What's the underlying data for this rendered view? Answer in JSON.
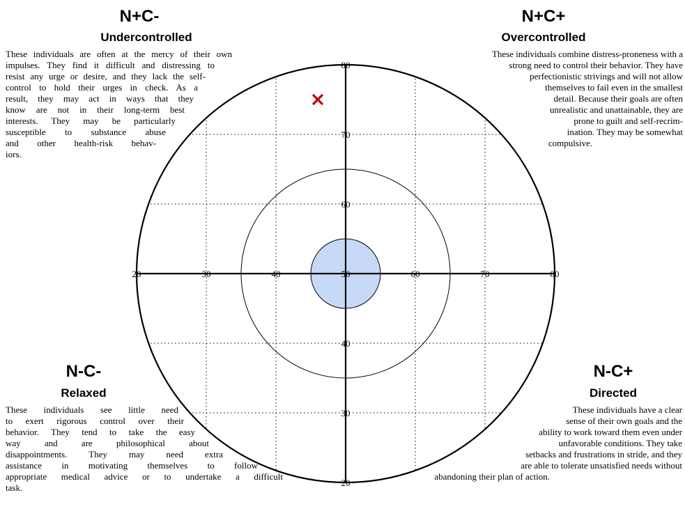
{
  "chart_data": {
    "type": "scatter",
    "x_axis": {
      "range": [
        20,
        80
      ],
      "ticks": [
        "20",
        "30",
        "40",
        "60",
        "70",
        "80"
      ]
    },
    "y_axis": {
      "range": [
        20,
        80
      ],
      "ticks": [
        "80",
        "70",
        "60",
        "40",
        "30",
        "20"
      ]
    },
    "center_label": "50",
    "reference_circles": [
      {
        "radius": 15,
        "style": "outline"
      },
      {
        "radius": 30,
        "style": "outline-bold"
      }
    ],
    "center_disc": {
      "radius": 5,
      "fill": "#c6d9f7"
    },
    "grid_lines": [
      30,
      40,
      60,
      70
    ],
    "grid": "dotted",
    "marker": {
      "x": 46,
      "y": 75,
      "symbol": "x",
      "color": "#c00000"
    }
  },
  "quadrants": {
    "top_left": {
      "code": "N+C-",
      "type": "Undercontrolled",
      "lines": [
        "These individuals are often at the mercy of their own",
        "impulses. They find it difficult and distressing to",
        "resist any urge or desire, and they lack the self-",
        "control to hold their urges in check. As a",
        "result, they may act in ways that they",
        "know are not in their long-term best",
        "interests. They may be particularly",
        "susceptible to substance abuse",
        "and other health-risk behav-",
        "iors."
      ]
    },
    "top_right": {
      "code": "N+C+",
      "type": "Overcontrolled",
      "lines": [
        "These individuals combine distress-proneness with a",
        "strong need to control their behavior. They have",
        "perfectionistic strivings and will not allow",
        "themselves to fail even in the smallest",
        "detail. Because their goals are often",
        "unrealistic and unattainable, they are",
        "prone to guilt and self-recrim-",
        "ination. They may be somewhat",
        "compulsive."
      ]
    },
    "bottom_left": {
      "code": "N-C-",
      "type": "Relaxed",
      "lines": [
        "These individuals see little need",
        "to exert rigorous control over their",
        "behavior. They tend to take the easy",
        "way and are philosophical about",
        "disappointments. They may need extra",
        "assistance in motivating themselves to follow",
        "appropriate medical advice or to undertake a difficult",
        "task."
      ]
    },
    "bottom_right": {
      "code": "N-C+",
      "type": "Directed",
      "lines": [
        "These individuals have a clear",
        "sense of their own goals and the",
        "ability to work toward them even under",
        "unfavorable conditions. They take",
        "setbacks and frustrations in stride, and they",
        "are able to tolerate unsatisfied needs without",
        "abandoning their plan of action."
      ]
    }
  }
}
